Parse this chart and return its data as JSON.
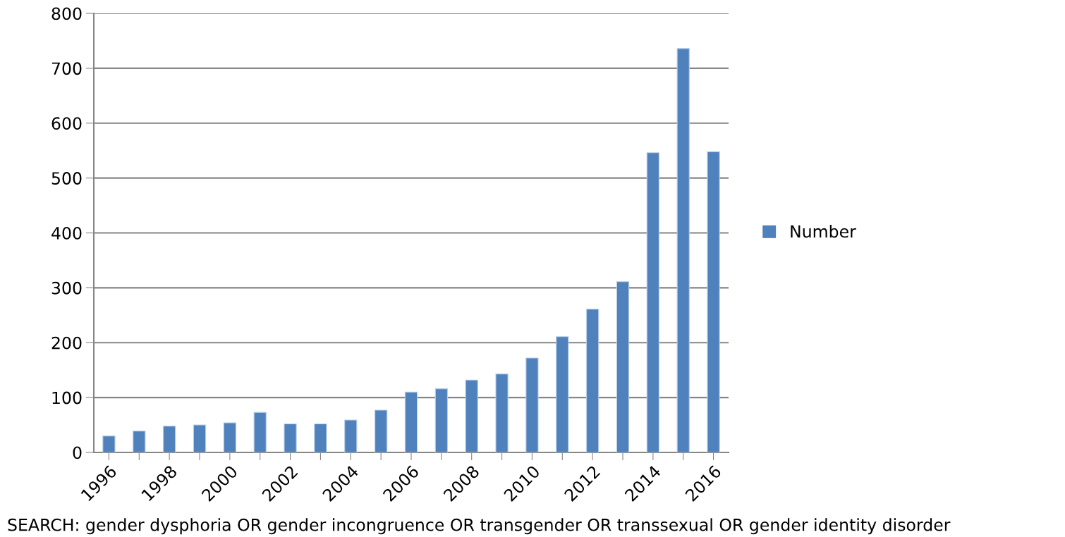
{
  "chart_data": {
    "type": "bar",
    "categories": [
      "1996",
      null,
      "1998",
      null,
      "2000",
      null,
      "2002",
      null,
      "2004",
      null,
      "2006",
      null,
      "2008",
      null,
      "2010",
      null,
      "2012",
      null,
      "2014",
      null,
      "2016"
    ],
    "series": [
      {
        "name": "Number",
        "color": "#4f81bd",
        "values": [
          30,
          39,
          48,
          50,
          54,
          73,
          52,
          52,
          59,
          77,
          110,
          116,
          132,
          143,
          172,
          211,
          261,
          311,
          546,
          736,
          548
        ]
      }
    ],
    "ylim": [
      0,
      800
    ],
    "yticks": [
      0,
      100,
      200,
      300,
      400,
      500,
      600,
      700,
      800
    ],
    "grid": "y",
    "legend": "right",
    "annotations": [
      "SEARCH: gender dysphoria OR gender incongruence OR transgender OR transsexual OR gender identity disorder"
    ]
  }
}
